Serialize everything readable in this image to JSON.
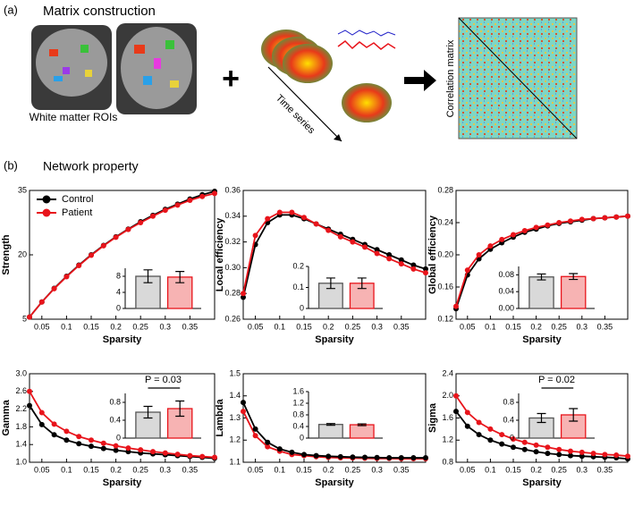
{
  "panel_a": {
    "label": "(a)",
    "title": "Matrix construction",
    "roi_caption": "White matter ROIs",
    "time_caption": "Time series",
    "matrix_caption": "Correlation matrix"
  },
  "panel_b": {
    "label": "(b)",
    "title": "Network property"
  },
  "chart_data": [
    {
      "type": "line",
      "xlabel": "Sparsity",
      "ylabel": "Strength",
      "legend": "upper left",
      "x": [
        0.025,
        0.05,
        0.075,
        0.1,
        0.125,
        0.15,
        0.175,
        0.2,
        0.225,
        0.25,
        0.275,
        0.3,
        0.325,
        0.35,
        0.375,
        0.4
      ],
      "xlim": [
        0.025,
        0.4
      ],
      "xticks": [
        0.05,
        0.1,
        0.15,
        0.2,
        0.25,
        0.3,
        0.35
      ],
      "ylim": [
        5,
        35
      ],
      "yticks": [
        5,
        20,
        35
      ],
      "series": [
        {
          "name": "Control",
          "color": "#000000",
          "values": [
            5.5,
            9,
            12.2,
            15,
            17.6,
            20,
            22.2,
            24.2,
            26,
            27.7,
            29.2,
            30.6,
            31.8,
            33,
            34,
            34.8
          ]
        },
        {
          "name": "Patient",
          "color": "#e8141b",
          "values": [
            5.5,
            9,
            12.1,
            14.9,
            17.5,
            19.9,
            22.1,
            24.1,
            25.9,
            27.5,
            29,
            30.4,
            31.6,
            32.7,
            33.6,
            34.3
          ]
        }
      ],
      "inset": {
        "type": "bar",
        "categories": [
          null,
          null
        ],
        "values": [
          8,
          7.8
        ],
        "errors": [
          1.6,
          1.4
        ],
        "colors": [
          "#d9d9d9",
          "#f7b3b3"
        ],
        "edgecolors": [
          "#555555",
          "#e8141b"
        ],
        "ylim": [
          0,
          10
        ],
        "yticks": [
          0,
          4,
          8
        ]
      }
    },
    {
      "type": "line",
      "xlabel": "Sparsity",
      "ylabel": "Local efficiency",
      "x": [
        0.025,
        0.05,
        0.075,
        0.1,
        0.125,
        0.15,
        0.175,
        0.2,
        0.225,
        0.25,
        0.275,
        0.3,
        0.325,
        0.35,
        0.375,
        0.4
      ],
      "xlim": [
        0.025,
        0.4
      ],
      "xticks": [
        0.05,
        0.1,
        0.15,
        0.2,
        0.25,
        0.3,
        0.35
      ],
      "ylim": [
        0.26,
        0.36
      ],
      "yticks": [
        0.26,
        0.28,
        {
          "value": 0.3,
          "label": "0.30"
        },
        0.32,
        0.34,
        0.36
      ],
      "series": [
        {
          "color": "#000000",
          "values": [
            0.277,
            0.318,
            0.335,
            0.341,
            0.341,
            0.338,
            0.334,
            0.33,
            0.326,
            0.322,
            0.318,
            0.314,
            0.31,
            0.306,
            0.302,
            0.299
          ]
        },
        {
          "color": "#e8141b",
          "values": [
            0.28,
            0.325,
            0.338,
            0.343,
            0.343,
            0.339,
            0.334,
            0.329,
            0.324,
            0.32,
            0.316,
            0.311,
            0.307,
            0.303,
            0.299,
            0.296
          ]
        }
      ],
      "inset": {
        "type": "bar",
        "categories": [
          null,
          null
        ],
        "values": [
          0.12,
          0.12
        ],
        "errors": [
          0.025,
          0.025
        ],
        "colors": [
          "#d9d9d9",
          "#f7b3b3"
        ],
        "edgecolors": [
          "#555555",
          "#e8141b"
        ],
        "ylim": [
          0,
          0.2
        ],
        "yticks": [
          0,
          0.1,
          0.2
        ]
      }
    },
    {
      "type": "line",
      "xlabel": "Sparsity",
      "ylabel": "Global efficiency",
      "x": [
        0.025,
        0.05,
        0.075,
        0.1,
        0.125,
        0.15,
        0.175,
        0.2,
        0.225,
        0.25,
        0.275,
        0.3,
        0.325,
        0.35,
        0.375,
        0.4
      ],
      "xlim": [
        0.025,
        0.4
      ],
      "xticks": [
        0.05,
        0.1,
        0.15,
        0.2,
        0.25,
        0.3,
        0.35
      ],
      "ylim": [
        0.12,
        0.28
      ],
      "yticks": [
        0.12,
        0.16,
        {
          "value": 0.2,
          "label": "0.20"
        },
        0.24,
        0.28
      ],
      "series": [
        {
          "color": "#000000",
          "values": [
            0.133,
            0.175,
            0.195,
            0.207,
            0.215,
            0.222,
            0.228,
            0.232,
            0.236,
            0.239,
            0.241,
            0.243,
            0.245,
            0.246,
            0.247,
            0.248
          ]
        },
        {
          "color": "#e8141b",
          "values": [
            0.136,
            0.181,
            0.2,
            0.211,
            0.219,
            0.225,
            0.23,
            0.234,
            0.237,
            0.24,
            0.242,
            0.244,
            0.245,
            0.246,
            0.247,
            0.248
          ]
        }
      ],
      "inset": {
        "type": "bar",
        "categories": [
          null,
          null
        ],
        "values": [
          0.075,
          0.076
        ],
        "errors": [
          0.007,
          0.007
        ],
        "colors": [
          "#d9d9d9",
          "#f7b3b3"
        ],
        "edgecolors": [
          "#555555",
          "#e8141b"
        ],
        "ylim": [
          0,
          0.1
        ],
        "yticks": [
          {
            "value": 0,
            "label": "0.00"
          },
          0.04,
          0.08
        ]
      }
    },
    {
      "type": "line",
      "xlabel": "Sparsity",
      "ylabel": "Gamma",
      "x": [
        0.025,
        0.05,
        0.075,
        0.1,
        0.125,
        0.15,
        0.175,
        0.2,
        0.225,
        0.25,
        0.275,
        0.3,
        0.325,
        0.35,
        0.375,
        0.4
      ],
      "xlim": [
        0.025,
        0.4
      ],
      "xticks": [
        0.05,
        0.1,
        0.15,
        0.2,
        0.25,
        0.3,
        0.35
      ],
      "ylim": [
        1,
        3
      ],
      "yticks": [
        {
          "value": 1,
          "label": "1.0"
        },
        1.4,
        1.8,
        2.2,
        2.6,
        {
          "value": 3,
          "label": "3.0"
        }
      ],
      "series": [
        {
          "color": "#000000",
          "values": [
            2.28,
            1.85,
            1.62,
            1.5,
            1.42,
            1.36,
            1.31,
            1.27,
            1.24,
            1.21,
            1.19,
            1.17,
            1.15,
            1.13,
            1.11,
            1.09
          ]
        },
        {
          "color": "#e8141b",
          "values": [
            2.6,
            2.12,
            1.86,
            1.7,
            1.58,
            1.5,
            1.43,
            1.37,
            1.32,
            1.28,
            1.24,
            1.21,
            1.18,
            1.15,
            1.13,
            1.11
          ]
        }
      ],
      "inset": {
        "type": "bar",
        "categories": [
          null,
          null
        ],
        "values": [
          0.58,
          0.66
        ],
        "errors": [
          0.13,
          0.17
        ],
        "colors": [
          "#d9d9d9",
          "#f7b3b3"
        ],
        "edgecolors": [
          "#555555",
          "#e8141b"
        ],
        "ylim": [
          0,
          1
        ],
        "yticks": [
          0,
          0.4,
          0.8
        ],
        "annotation": "P = 0.03"
      }
    },
    {
      "type": "line",
      "xlabel": "Sparsity",
      "ylabel": "Lambda",
      "x": [
        0.025,
        0.05,
        0.075,
        0.1,
        0.125,
        0.15,
        0.175,
        0.2,
        0.225,
        0.25,
        0.275,
        0.3,
        0.325,
        0.35,
        0.375,
        0.4
      ],
      "xlim": [
        0.025,
        0.4
      ],
      "xticks": [
        0.05,
        0.1,
        0.15,
        0.2,
        0.25,
        0.3,
        0.35
      ],
      "ylim": [
        1.1,
        1.5
      ],
      "yticks": [
        1.1,
        1.2,
        1.3,
        1.4,
        1.5
      ],
      "series": [
        {
          "color": "#e8141b",
          "values": [
            1.33,
            1.22,
            1.17,
            1.15,
            1.135,
            1.13,
            1.125,
            1.122,
            1.12,
            1.119,
            1.118,
            1.117,
            1.117,
            1.116,
            1.116,
            1.116
          ]
        },
        {
          "color": "#000000",
          "values": [
            1.37,
            1.25,
            1.19,
            1.16,
            1.145,
            1.135,
            1.13,
            1.127,
            1.125,
            1.123,
            1.122,
            1.121,
            1.12,
            1.12,
            1.12,
            1.12
          ]
        }
      ],
      "inset": {
        "type": "bar",
        "categories": [
          null,
          null
        ],
        "values": [
          0.47,
          0.46
        ],
        "errors": [
          0.03,
          0.03
        ],
        "colors": [
          "#d9d9d9",
          "#f7b3b3"
        ],
        "edgecolors": [
          "#555555",
          "#e8141b"
        ],
        "ylim": [
          0,
          1.6
        ],
        "yticks": [
          0,
          0.4,
          0.8,
          1.2,
          1.6
        ]
      }
    },
    {
      "type": "line",
      "xlabel": "Sparsity",
      "ylabel": "Sigma",
      "x": [
        0.025,
        0.05,
        0.075,
        0.1,
        0.125,
        0.15,
        0.175,
        0.2,
        0.225,
        0.25,
        0.275,
        0.3,
        0.325,
        0.35,
        0.375,
        0.4
      ],
      "xlim": [
        0.025,
        0.4
      ],
      "xticks": [
        0.05,
        0.1,
        0.15,
        0.2,
        0.25,
        0.3,
        0.35
      ],
      "ylim": [
        0.8,
        2.4
      ],
      "yticks": [
        0.8,
        1.2,
        1.6,
        {
          "value": 2,
          "label": "2.0"
        },
        2.4
      ],
      "series": [
        {
          "color": "#000000",
          "values": [
            1.72,
            1.45,
            1.3,
            1.2,
            1.13,
            1.07,
            1.03,
            0.99,
            0.96,
            0.94,
            0.92,
            0.91,
            0.9,
            0.89,
            0.88,
            0.86
          ]
        },
        {
          "color": "#e8141b",
          "values": [
            2.0,
            1.7,
            1.52,
            1.4,
            1.3,
            1.22,
            1.16,
            1.11,
            1.07,
            1.03,
            1.0,
            0.98,
            0.96,
            0.94,
            0.93,
            0.91
          ]
        }
      ],
      "inset": {
        "type": "bar",
        "categories": [
          null,
          null
        ],
        "values": [
          0.45,
          0.52
        ],
        "errors": [
          0.1,
          0.14
        ],
        "colors": [
          "#d9d9d9",
          "#f7b3b3"
        ],
        "edgecolors": [
          "#555555",
          "#e8141b"
        ],
        "ylim": [
          0,
          1
        ],
        "yticks": [
          0,
          0.4,
          0.8
        ],
        "annotation": "P = 0.02"
      }
    }
  ]
}
